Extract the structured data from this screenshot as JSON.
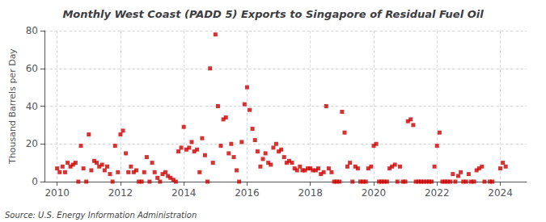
{
  "chart_data": {
    "type": "scatter",
    "title": "Monthly West Coast (PADD 5) Exports to Singapore of Residual Fuel Oil",
    "ylabel": "Thousand Barrels per Day",
    "annotations": [
      "Source: U.S. Energy Information Administration"
    ],
    "color": "#cc0000",
    "marker": "square",
    "grid": true,
    "xlim": [
      2009.6,
      2024.83
    ],
    "xticks": [
      2010,
      2012,
      2014,
      2016,
      2018,
      2020,
      2022,
      2024
    ],
    "ylim": [
      0,
      80
    ],
    "yticks": [
      0,
      20,
      40,
      60,
      80
    ],
    "x": [
      2010.0,
      2010.08,
      2010.17,
      2010.25,
      2010.33,
      2010.42,
      2010.5,
      2010.58,
      2010.67,
      2010.75,
      2010.83,
      2010.92,
      2011.0,
      2011.08,
      2011.17,
      2011.25,
      2011.33,
      2011.42,
      2011.5,
      2011.58,
      2011.67,
      2011.75,
      2011.83,
      2011.92,
      2012.0,
      2012.08,
      2012.17,
      2012.25,
      2012.33,
      2012.42,
      2012.5,
      2012.58,
      2012.67,
      2012.75,
      2012.83,
      2012.92,
      2013.0,
      2013.08,
      2013.17,
      2013.25,
      2013.33,
      2013.42,
      2013.5,
      2013.58,
      2013.67,
      2013.75,
      2013.83,
      2013.92,
      2014.0,
      2014.08,
      2014.17,
      2014.25,
      2014.33,
      2014.42,
      2014.5,
      2014.58,
      2014.67,
      2014.75,
      2014.83,
      2014.92,
      2015.0,
      2015.08,
      2015.17,
      2015.25,
      2015.33,
      2015.42,
      2015.5,
      2015.58,
      2015.67,
      2015.75,
      2015.83,
      2015.92,
      2016.0,
      2016.08,
      2016.17,
      2016.25,
      2016.33,
      2016.42,
      2016.5,
      2016.58,
      2016.67,
      2016.75,
      2016.83,
      2016.92,
      2017.0,
      2017.08,
      2017.17,
      2017.25,
      2017.33,
      2017.42,
      2017.5,
      2017.58,
      2017.67,
      2017.75,
      2017.83,
      2017.92,
      2018.0,
      2018.08,
      2018.17,
      2018.25,
      2018.33,
      2018.42,
      2018.5,
      2018.58,
      2018.67,
      2018.75,
      2018.83,
      2018.92,
      2019.0,
      2019.08,
      2019.17,
      2019.25,
      2019.33,
      2019.42,
      2019.5,
      2019.58,
      2019.67,
      2019.75,
      2019.83,
      2019.92,
      2020.0,
      2020.08,
      2020.17,
      2020.25,
      2020.33,
      2020.42,
      2020.5,
      2020.58,
      2020.67,
      2020.75,
      2020.83,
      2020.92,
      2021.0,
      2021.08,
      2021.17,
      2021.25,
      2021.33,
      2021.42,
      2021.5,
      2021.58,
      2021.67,
      2021.75,
      2021.83,
      2021.92,
      2022.0,
      2022.08,
      2022.17,
      2022.25,
      2022.33,
      2022.42,
      2022.5,
      2022.58,
      2022.67,
      2022.75,
      2022.83,
      2022.92,
      2023.0,
      2023.08,
      2023.17,
      2023.25,
      2023.33,
      2023.42,
      2023.5,
      2023.67,
      2023.75,
      2024.0,
      2024.08,
      2024.17
    ],
    "values": [
      7,
      5,
      8,
      5,
      10,
      8,
      9,
      10,
      0,
      19,
      7,
      0,
      25,
      6,
      11,
      10,
      8,
      9,
      6,
      8,
      4,
      0,
      19,
      5,
      25,
      27,
      15,
      5,
      8,
      5,
      6,
      0,
      0,
      5,
      13,
      0,
      10,
      5,
      2,
      0,
      4,
      5,
      3,
      2,
      1,
      0,
      16,
      18,
      29,
      17,
      18,
      21,
      16,
      17,
      5,
      23,
      14,
      0,
      60,
      10,
      78,
      40,
      19,
      33,
      34,
      15,
      20,
      13,
      6,
      0,
      21,
      41,
      50,
      38,
      28,
      22,
      16,
      8,
      12,
      15,
      10,
      9,
      18,
      20,
      16,
      17,
      13,
      10,
      11,
      10,
      7,
      6,
      8,
      6,
      6,
      7,
      7,
      6,
      6,
      7,
      4,
      5,
      40,
      7,
      5,
      0,
      0,
      0,
      37,
      26,
      8,
      10,
      0,
      8,
      7,
      0,
      0,
      0,
      7,
      8,
      19,
      20,
      0,
      0,
      0,
      0,
      7,
      8,
      9,
      0,
      8,
      0,
      0,
      32,
      33,
      30,
      0,
      0,
      0,
      0,
      0,
      0,
      0,
      8,
      19,
      26,
      0,
      0,
      0,
      0,
      4,
      0,
      3,
      5,
      0,
      0,
      4,
      0,
      0,
      6,
      7,
      8,
      0,
      0,
      0,
      7,
      10,
      8
    ]
  }
}
